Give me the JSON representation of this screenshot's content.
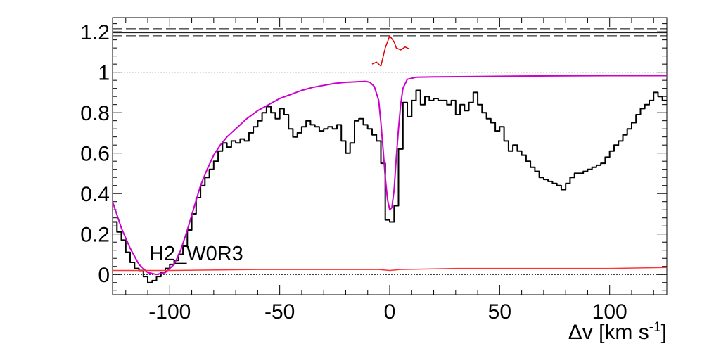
{
  "chart_data": {
    "type": "line",
    "title": "",
    "xlabel": "Δv [km s",
    "xlabel_sup": "-1",
    "xlabel_close": "]",
    "ylabel": "",
    "xlim": [
      -126,
      126
    ],
    "ylim": [
      -0.1,
      1.27
    ],
    "x_ticks": [
      -100,
      -50,
      0,
      50,
      100
    ],
    "x_tick_labels": [
      "-100",
      "-50",
      "0",
      "50",
      "100"
    ],
    "y_ticks": [
      0,
      0.2,
      0.4,
      0.6,
      0.8,
      1,
      1.2
    ],
    "y_tick_labels": [
      "0",
      "0.2",
      "0.4",
      "0.6",
      "0.8",
      "1",
      "1.2"
    ],
    "grid": false,
    "legend": "none",
    "annotation": "H2_W0R3",
    "reference_lines": [
      {
        "name": "continuum",
        "y": 1.0,
        "style": "dotted"
      },
      {
        "name": "zero",
        "y": 0.0,
        "style": "dotted"
      },
      {
        "name": "upper-solid",
        "y": 1.195,
        "style": "solid"
      },
      {
        "name": "upper-dashed-1",
        "y": 1.215,
        "style": "dashed"
      },
      {
        "name": "upper-dashed-2",
        "y": 1.18,
        "style": "dashed"
      }
    ],
    "series": [
      {
        "color": "#000000",
        "step": true,
        "points": [
          [
            -125,
            0.26
          ],
          [
            -123,
            0.21
          ],
          [
            -121,
            0.17
          ],
          [
            -119,
            0.11
          ],
          [
            -117,
            0.06
          ],
          [
            -115,
            0.03
          ],
          [
            -113,
            0.02
          ],
          [
            -111,
            -0.01
          ],
          [
            -109,
            -0.04
          ],
          [
            -107,
            -0.03
          ],
          [
            -105,
            -0.01
          ],
          [
            -103,
            0.01
          ],
          [
            -101,
            0.03
          ],
          [
            -99,
            0.05
          ],
          [
            -97,
            0.07
          ],
          [
            -95,
            0.1
          ],
          [
            -93,
            0.14
          ],
          [
            -91,
            0.22
          ],
          [
            -89,
            0.3
          ],
          [
            -87,
            0.38
          ],
          [
            -85,
            0.44
          ],
          [
            -83,
            0.48
          ],
          [
            -81,
            0.52
          ],
          [
            -79,
            0.56
          ],
          [
            -77,
            0.61
          ],
          [
            -75,
            0.65
          ],
          [
            -73,
            0.63
          ],
          [
            -71,
            0.66
          ],
          [
            -69,
            0.65
          ],
          [
            -67,
            0.67
          ],
          [
            -65,
            0.66
          ],
          [
            -63,
            0.7
          ],
          [
            -61,
            0.73
          ],
          [
            -59,
            0.76
          ],
          [
            -57,
            0.8
          ],
          [
            -55,
            0.83
          ],
          [
            -53,
            0.8
          ],
          [
            -51,
            0.77
          ],
          [
            -49,
            0.82
          ],
          [
            -47,
            0.79
          ],
          [
            -45,
            0.72
          ],
          [
            -43,
            0.68
          ],
          [
            -41,
            0.7
          ],
          [
            -39,
            0.73
          ],
          [
            -37,
            0.76
          ],
          [
            -35,
            0.74
          ],
          [
            -33,
            0.73
          ],
          [
            -31,
            0.71
          ],
          [
            -29,
            0.72
          ],
          [
            -27,
            0.73
          ],
          [
            -25,
            0.72
          ],
          [
            -23,
            0.74
          ],
          [
            -21,
            0.66
          ],
          [
            -19,
            0.6
          ],
          [
            -17,
            0.65
          ],
          [
            -15,
            0.76
          ],
          [
            -13,
            0.77
          ],
          [
            -11,
            0.74
          ],
          [
            -9,
            0.72
          ],
          [
            -7,
            0.69
          ],
          [
            -5,
            0.66
          ],
          [
            -3,
            0.55
          ],
          [
            -1,
            0.27
          ],
          [
            1,
            0.26
          ],
          [
            3,
            0.34
          ],
          [
            5,
            0.62
          ],
          [
            7,
            0.85
          ],
          [
            9,
            0.78
          ],
          [
            11,
            0.86
          ],
          [
            13,
            0.91
          ],
          [
            15,
            0.84
          ],
          [
            17,
            0.88
          ],
          [
            19,
            0.86
          ],
          [
            21,
            0.87
          ],
          [
            23,
            0.86
          ],
          [
            25,
            0.86
          ],
          [
            27,
            0.84
          ],
          [
            29,
            0.86
          ],
          [
            31,
            0.79
          ],
          [
            33,
            0.84
          ],
          [
            35,
            0.81
          ],
          [
            37,
            0.85
          ],
          [
            39,
            0.9
          ],
          [
            41,
            0.84
          ],
          [
            43,
            0.8
          ],
          [
            45,
            0.77
          ],
          [
            47,
            0.75
          ],
          [
            49,
            0.71
          ],
          [
            51,
            0.73
          ],
          [
            53,
            0.66
          ],
          [
            55,
            0.61
          ],
          [
            57,
            0.64
          ],
          [
            59,
            0.61
          ],
          [
            61,
            0.59
          ],
          [
            63,
            0.56
          ],
          [
            65,
            0.53
          ],
          [
            67,
            0.51
          ],
          [
            69,
            0.48
          ],
          [
            71,
            0.47
          ],
          [
            73,
            0.46
          ],
          [
            75,
            0.45
          ],
          [
            77,
            0.44
          ],
          [
            79,
            0.42
          ],
          [
            81,
            0.45
          ],
          [
            83,
            0.48
          ],
          [
            85,
            0.5
          ],
          [
            87,
            0.5
          ],
          [
            89,
            0.51
          ],
          [
            91,
            0.52
          ],
          [
            93,
            0.53
          ],
          [
            95,
            0.54
          ],
          [
            97,
            0.55
          ],
          [
            99,
            0.58
          ],
          [
            101,
            0.61
          ],
          [
            103,
            0.64
          ],
          [
            105,
            0.66
          ],
          [
            107,
            0.69
          ],
          [
            109,
            0.72
          ],
          [
            111,
            0.75
          ],
          [
            113,
            0.79
          ],
          [
            115,
            0.82
          ],
          [
            117,
            0.84
          ],
          [
            119,
            0.86
          ],
          [
            121,
            0.9
          ],
          [
            123,
            0.88
          ],
          [
            125,
            0.86
          ]
        ]
      },
      {
        "color": "#cc00cc",
        "step": false,
        "points": [
          [
            -126,
            0.36
          ],
          [
            -122,
            0.23
          ],
          [
            -118,
            0.13
          ],
          [
            -114,
            0.05
          ],
          [
            -110,
            0.01
          ],
          [
            -106,
            0.0
          ],
          [
            -102,
            0.01
          ],
          [
            -98,
            0.05
          ],
          [
            -95,
            0.12
          ],
          [
            -92,
            0.22
          ],
          [
            -89,
            0.33
          ],
          [
            -86,
            0.44
          ],
          [
            -83,
            0.52
          ],
          [
            -80,
            0.59
          ],
          [
            -77,
            0.64
          ],
          [
            -74,
            0.68
          ],
          [
            -70,
            0.72
          ],
          [
            -65,
            0.77
          ],
          [
            -60,
            0.81
          ],
          [
            -55,
            0.84
          ],
          [
            -50,
            0.87
          ],
          [
            -45,
            0.89
          ],
          [
            -40,
            0.91
          ],
          [
            -35,
            0.925
          ],
          [
            -30,
            0.935
          ],
          [
            -25,
            0.945
          ],
          [
            -20,
            0.95
          ],
          [
            -15,
            0.953
          ],
          [
            -11,
            0.955
          ],
          [
            -9,
            0.95
          ],
          [
            -7,
            0.93
          ],
          [
            -5,
            0.86
          ],
          [
            -4,
            0.75
          ],
          [
            -3,
            0.62
          ],
          [
            -2,
            0.48
          ],
          [
            -1,
            0.37
          ],
          [
            0,
            0.32
          ],
          [
            1,
            0.33
          ],
          [
            2,
            0.42
          ],
          [
            3,
            0.58
          ],
          [
            4,
            0.72
          ],
          [
            5,
            0.84
          ],
          [
            6,
            0.92
          ],
          [
            8,
            0.965
          ],
          [
            12,
            0.975
          ],
          [
            20,
            0.977
          ],
          [
            40,
            0.979
          ],
          [
            60,
            0.981
          ],
          [
            80,
            0.982
          ],
          [
            100,
            0.983
          ],
          [
            126,
            0.983
          ]
        ]
      },
      {
        "color": "#ff3333",
        "step": false,
        "points": [
          [
            -126,
            0.02
          ],
          [
            -100,
            0.02
          ],
          [
            -60,
            0.025
          ],
          [
            -20,
            0.025
          ],
          [
            -5,
            0.025
          ],
          [
            0,
            0.02
          ],
          [
            5,
            0.025
          ],
          [
            30,
            0.03
          ],
          [
            60,
            0.03
          ],
          [
            100,
            0.03
          ],
          [
            126,
            0.035
          ]
        ]
      },
      {
        "color": "#dd0000",
        "step": false,
        "points": [
          [
            -8,
            1.04
          ],
          [
            -6,
            1.05
          ],
          [
            -4,
            1.03
          ],
          [
            -2,
            1.12
          ],
          [
            0,
            1.18
          ],
          [
            2,
            1.15
          ],
          [
            3,
            1.12
          ],
          [
            5,
            1.11
          ],
          [
            7,
            1.125
          ],
          [
            9,
            1.115
          ]
        ]
      }
    ]
  }
}
